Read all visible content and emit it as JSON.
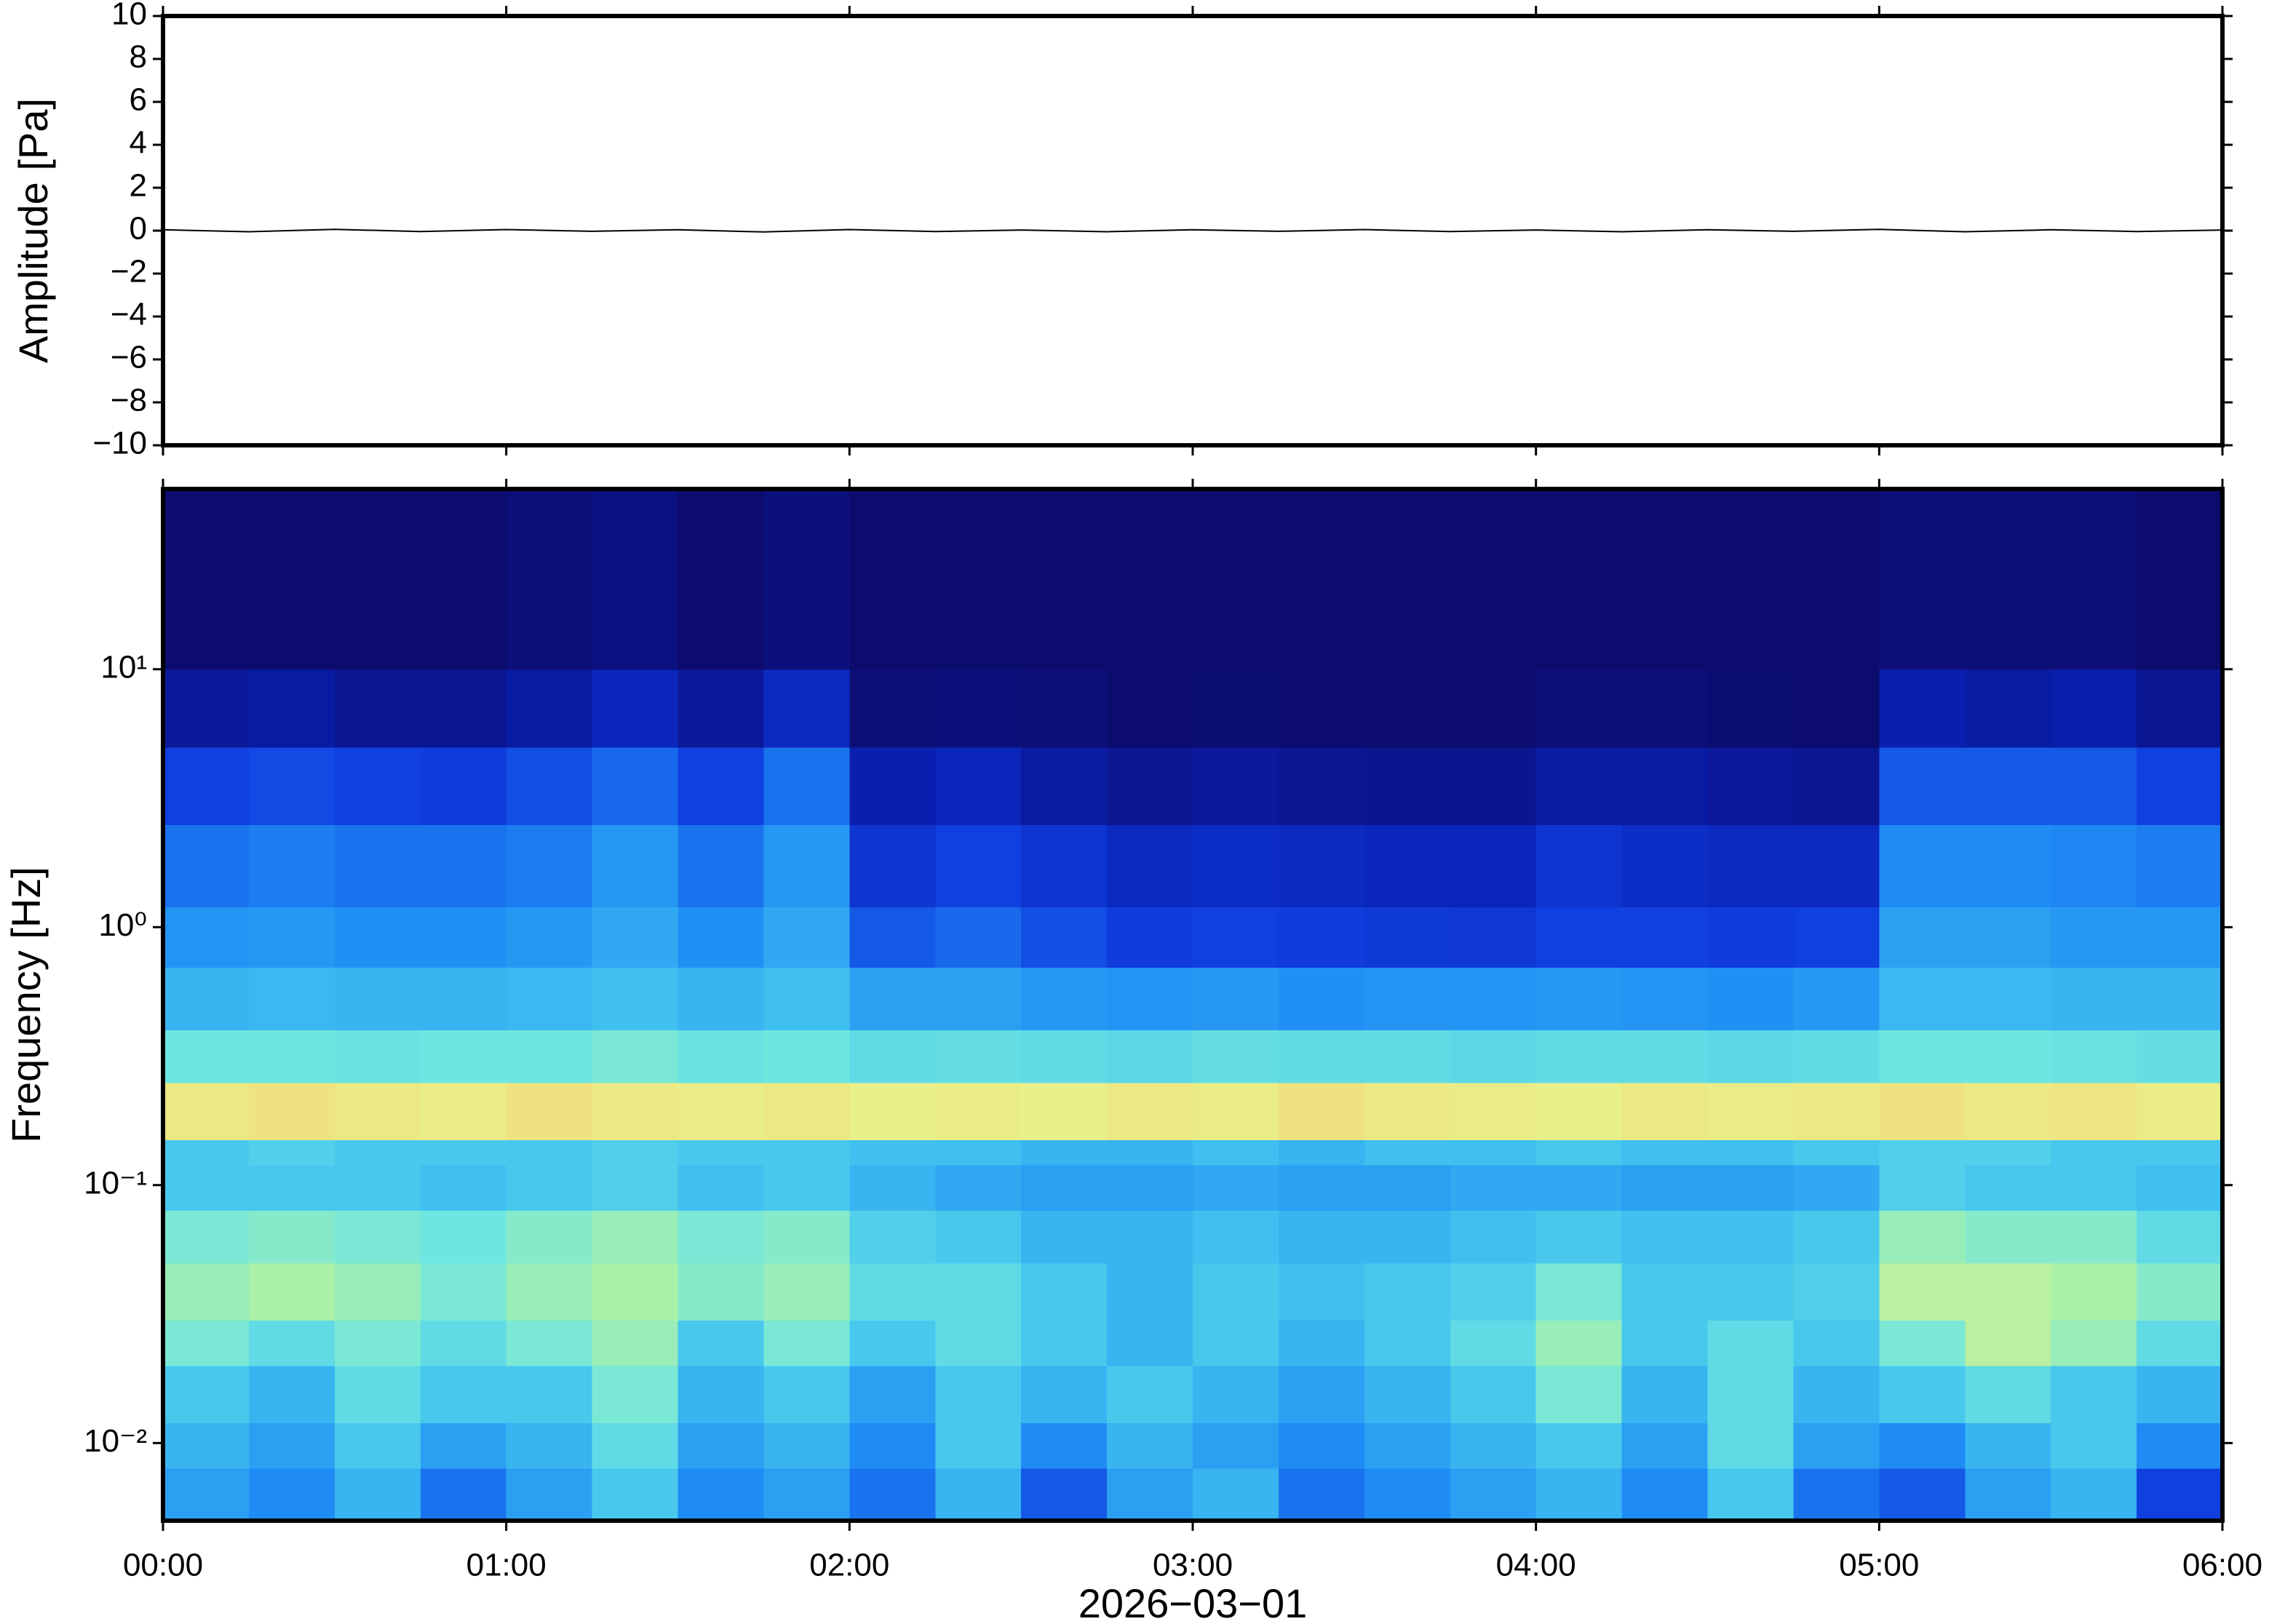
{
  "chart_data": [
    {
      "type": "line",
      "ylabel": "Amplitude [Pa]",
      "color": "#000000",
      "x": [
        "00:00",
        "00:15",
        "00:30",
        "00:45",
        "01:00",
        "01:15",
        "01:30",
        "01:45",
        "02:00",
        "02:15",
        "02:30",
        "02:45",
        "03:00",
        "03:15",
        "03:30",
        "03:45",
        "04:00",
        "04:15",
        "04:30",
        "04:45",
        "05:00",
        "05:15",
        "05:30",
        "05:45",
        "06:00"
      ],
      "values": [
        0.04,
        -0.05,
        0.06,
        -0.04,
        0.05,
        -0.03,
        0.04,
        -0.06,
        0.05,
        -0.04,
        0.03,
        -0.05,
        0.04,
        -0.03,
        0.05,
        -0.04,
        0.03,
        -0.05,
        0.04,
        -0.03,
        0.06,
        -0.05,
        0.04,
        -0.04,
        0.03
      ],
      "ylim": [
        -10,
        10
      ],
      "yticks": [
        {
          "value": -10,
          "label": "−10"
        },
        {
          "value": -8,
          "label": "−8"
        },
        {
          "value": -6,
          "label": "−6"
        },
        {
          "value": -4,
          "label": "−4"
        },
        {
          "value": -2,
          "label": "−2"
        },
        0,
        2,
        4,
        6,
        8,
        10
      ]
    },
    {
      "type": "heatmap",
      "ylabel": "Frequency [Hz]",
      "xlabel": "2026−03−01",
      "log_y": true,
      "x": [
        "00:00",
        "00:15",
        "00:30",
        "00:45",
        "01:00",
        "01:15",
        "01:30",
        "01:45",
        "02:00",
        "02:15",
        "02:30",
        "02:45",
        "03:00",
        "03:15",
        "03:30",
        "03:45",
        "04:00",
        "04:15",
        "04:30",
        "04:45",
        "05:00",
        "05:15",
        "05:30",
        "05:45"
      ],
      "xlim": [
        "00:00",
        "06:00"
      ],
      "xticks": [
        "00:00",
        "01:00",
        "02:00",
        "03:00",
        "04:00",
        "05:00",
        "06:00"
      ],
      "y_edges": [
        0.005,
        0.008,
        0.012,
        0.02,
        0.03,
        0.05,
        0.08,
        0.12,
        0.15,
        0.25,
        0.4,
        0.7,
        1.2,
        2.5,
        5,
        10,
        50
      ],
      "ylim": [
        0.005,
        50
      ],
      "yticks": [
        {
          "value": 0.01,
          "label": "10⁻²"
        },
        {
          "value": 0.1,
          "label": "10⁻¹"
        },
        {
          "value": 1,
          "label": "10⁰"
        },
        {
          "value": 10,
          "label": "10¹"
        }
      ],
      "zlim": [
        0,
        1
      ],
      "values": [
        [
          0.5,
          0.45,
          0.55,
          0.4,
          0.5,
          0.6,
          0.45,
          0.5,
          0.4,
          0.55,
          0.35,
          0.5,
          0.55,
          0.4,
          0.45,
          0.5,
          0.55,
          0.45,
          0.6,
          0.4,
          0.35,
          0.5,
          0.55,
          0.3
        ],
        [
          0.55,
          0.5,
          0.6,
          0.5,
          0.55,
          0.65,
          0.5,
          0.55,
          0.45,
          0.6,
          0.45,
          0.55,
          0.5,
          0.45,
          0.5,
          0.55,
          0.6,
          0.5,
          0.65,
          0.5,
          0.45,
          0.55,
          0.6,
          0.45
        ],
        [
          0.6,
          0.55,
          0.65,
          0.6,
          0.6,
          0.7,
          0.55,
          0.6,
          0.5,
          0.6,
          0.55,
          0.6,
          0.55,
          0.5,
          0.55,
          0.6,
          0.7,
          0.55,
          0.65,
          0.55,
          0.6,
          0.65,
          0.6,
          0.55
        ],
        [
          0.7,
          0.65,
          0.7,
          0.65,
          0.7,
          0.75,
          0.6,
          0.7,
          0.6,
          0.65,
          0.6,
          0.55,
          0.6,
          0.55,
          0.6,
          0.65,
          0.75,
          0.6,
          0.65,
          0.6,
          0.7,
          0.8,
          0.75,
          0.65
        ],
        [
          0.75,
          0.78,
          0.75,
          0.7,
          0.75,
          0.78,
          0.72,
          0.75,
          0.65,
          0.65,
          0.6,
          0.55,
          0.6,
          0.58,
          0.6,
          0.62,
          0.7,
          0.6,
          0.6,
          0.62,
          0.8,
          0.8,
          0.78,
          0.72
        ],
        [
          0.7,
          0.72,
          0.7,
          0.68,
          0.72,
          0.75,
          0.7,
          0.72,
          0.62,
          0.6,
          0.55,
          0.55,
          0.58,
          0.55,
          0.55,
          0.58,
          0.6,
          0.58,
          0.58,
          0.6,
          0.75,
          0.72,
          0.72,
          0.65
        ],
        [
          0.6,
          0.6,
          0.6,
          0.58,
          0.6,
          0.62,
          0.58,
          0.6,
          0.55,
          0.52,
          0.5,
          0.5,
          0.52,
          0.5,
          0.5,
          0.52,
          0.52,
          0.5,
          0.5,
          0.52,
          0.62,
          0.6,
          0.6,
          0.58
        ],
        [
          0.6,
          0.62,
          0.6,
          0.6,
          0.6,
          0.62,
          0.6,
          0.6,
          0.58,
          0.58,
          0.55,
          0.55,
          0.58,
          0.55,
          0.58,
          0.58,
          0.6,
          0.58,
          0.58,
          0.6,
          0.62,
          0.62,
          0.6,
          0.6
        ],
        [
          0.88,
          0.9,
          0.88,
          0.87,
          0.9,
          0.88,
          0.87,
          0.88,
          0.86,
          0.87,
          0.86,
          0.88,
          0.87,
          0.9,
          0.88,
          0.87,
          0.86,
          0.88,
          0.87,
          0.88,
          0.9,
          0.88,
          0.89,
          0.87
        ],
        [
          0.68,
          0.68,
          0.67,
          0.68,
          0.68,
          0.7,
          0.67,
          0.68,
          0.65,
          0.66,
          0.65,
          0.64,
          0.66,
          0.65,
          0.65,
          0.64,
          0.65,
          0.65,
          0.64,
          0.65,
          0.68,
          0.68,
          0.67,
          0.66
        ],
        [
          0.55,
          0.56,
          0.55,
          0.55,
          0.56,
          0.58,
          0.55,
          0.58,
          0.5,
          0.5,
          0.48,
          0.47,
          0.48,
          0.46,
          0.47,
          0.47,
          0.48,
          0.47,
          0.46,
          0.48,
          0.56,
          0.56,
          0.55,
          0.55
        ],
        [
          0.47,
          0.48,
          0.46,
          0.46,
          0.48,
          0.52,
          0.46,
          0.52,
          0.35,
          0.38,
          0.33,
          0.28,
          0.3,
          0.28,
          0.27,
          0.26,
          0.3,
          0.3,
          0.28,
          0.3,
          0.5,
          0.5,
          0.48,
          0.48
        ],
        [
          0.4,
          0.42,
          0.4,
          0.4,
          0.42,
          0.48,
          0.4,
          0.48,
          0.25,
          0.3,
          0.25,
          0.2,
          0.22,
          0.2,
          0.18,
          0.18,
          0.25,
          0.22,
          0.2,
          0.2,
          0.45,
          0.45,
          0.44,
          0.42
        ],
        [
          0.3,
          0.32,
          0.3,
          0.28,
          0.33,
          0.38,
          0.3,
          0.4,
          0.15,
          0.18,
          0.12,
          0.08,
          0.1,
          0.08,
          0.07,
          0.07,
          0.12,
          0.12,
          0.1,
          0.08,
          0.35,
          0.35,
          0.35,
          0.3
        ],
        [
          0.1,
          0.12,
          0.08,
          0.08,
          0.12,
          0.18,
          0.1,
          0.2,
          0.02,
          0.03,
          0.02,
          0,
          0.01,
          0,
          0,
          0,
          0.02,
          0.02,
          0.01,
          0,
          0.15,
          0.12,
          0.14,
          0.08
        ],
        [
          0,
          0,
          0,
          0,
          0.02,
          0.04,
          0,
          0.03,
          0,
          0,
          0,
          0,
          0,
          0,
          0,
          0,
          0,
          0,
          0,
          0,
          0.02,
          0.02,
          0.02,
          0
        ]
      ]
    }
  ]
}
